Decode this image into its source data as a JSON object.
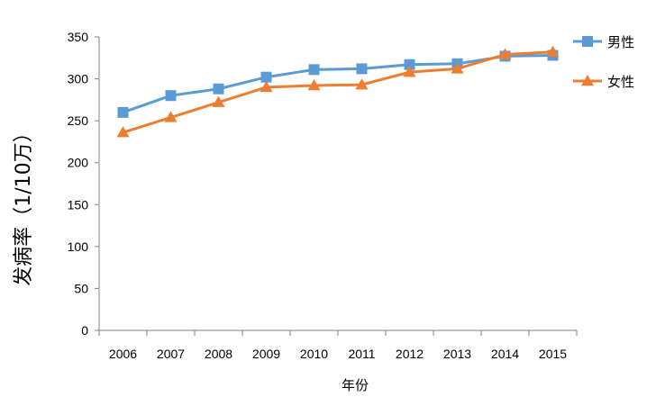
{
  "chart_data": {
    "type": "line",
    "title": "",
    "xlabel": "年份",
    "ylabel": "发病率（1/10万）",
    "categories": [
      "2006",
      "2007",
      "2008",
      "2009",
      "2010",
      "2011",
      "2012",
      "2013",
      "2014",
      "2015"
    ],
    "ylim": [
      0,
      350
    ],
    "yticks": [
      0,
      50,
      100,
      150,
      200,
      250,
      300,
      350
    ],
    "ytick_labels": [
      "0",
      "50",
      "100",
      "150",
      "200",
      "250",
      "300",
      "350"
    ],
    "grid": false,
    "legend_position": "right",
    "series": [
      {
        "name": "男性",
        "color": "#5b9bd5",
        "marker": "square",
        "values": [
          260,
          280,
          288,
          302,
          311,
          312,
          317,
          318,
          327,
          328
        ]
      },
      {
        "name": "女性",
        "color": "#ed7d31",
        "marker": "triangle",
        "values": [
          236,
          254,
          272,
          290,
          292,
          293,
          308,
          312,
          329,
          332
        ]
      }
    ]
  }
}
